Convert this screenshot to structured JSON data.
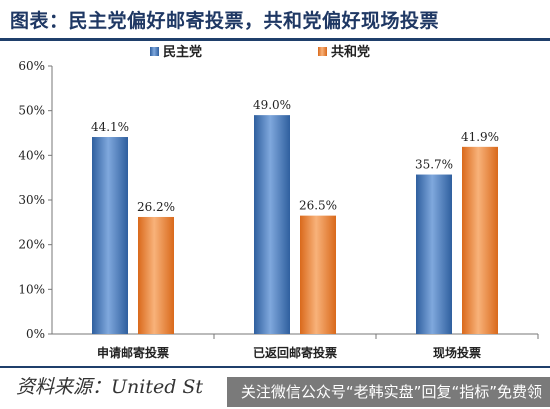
{
  "title": "图表：民主党偏好邮寄投票，共和党偏好现场投票",
  "source": "资料来源：United St",
  "watermark": "关注微信公众号“老韩实盘”回复“指标”免费领",
  "colors": {
    "title": "#1f3864",
    "democrat": "#4a7ec2",
    "republican": "#f0883a",
    "rule": "#1f3f6b"
  },
  "chart_data": {
    "type": "bar",
    "title": "",
    "xlabel": "",
    "ylabel": "",
    "categories": [
      "申请邮寄投票",
      "已返回邮寄投票",
      "现场投票"
    ],
    "series": [
      {
        "name": "民主党",
        "values": [
          44.1,
          49.0,
          35.7
        ],
        "labels": [
          "44.1%",
          "49.0%",
          "35.7%"
        ],
        "color": "#4a7ec2"
      },
      {
        "name": "共和党",
        "values": [
          26.2,
          26.5,
          41.9
        ],
        "labels": [
          "26.2%",
          "26.5%",
          "41.9%"
        ],
        "color": "#f0883a"
      }
    ],
    "ylim": [
      0,
      60
    ],
    "yticks": [
      0,
      10,
      20,
      30,
      40,
      50,
      60
    ],
    "yticklabels": [
      "0%",
      "10%",
      "20%",
      "30%",
      "40%",
      "50%",
      "60%"
    ],
    "grid": false,
    "legend": "top-center"
  }
}
